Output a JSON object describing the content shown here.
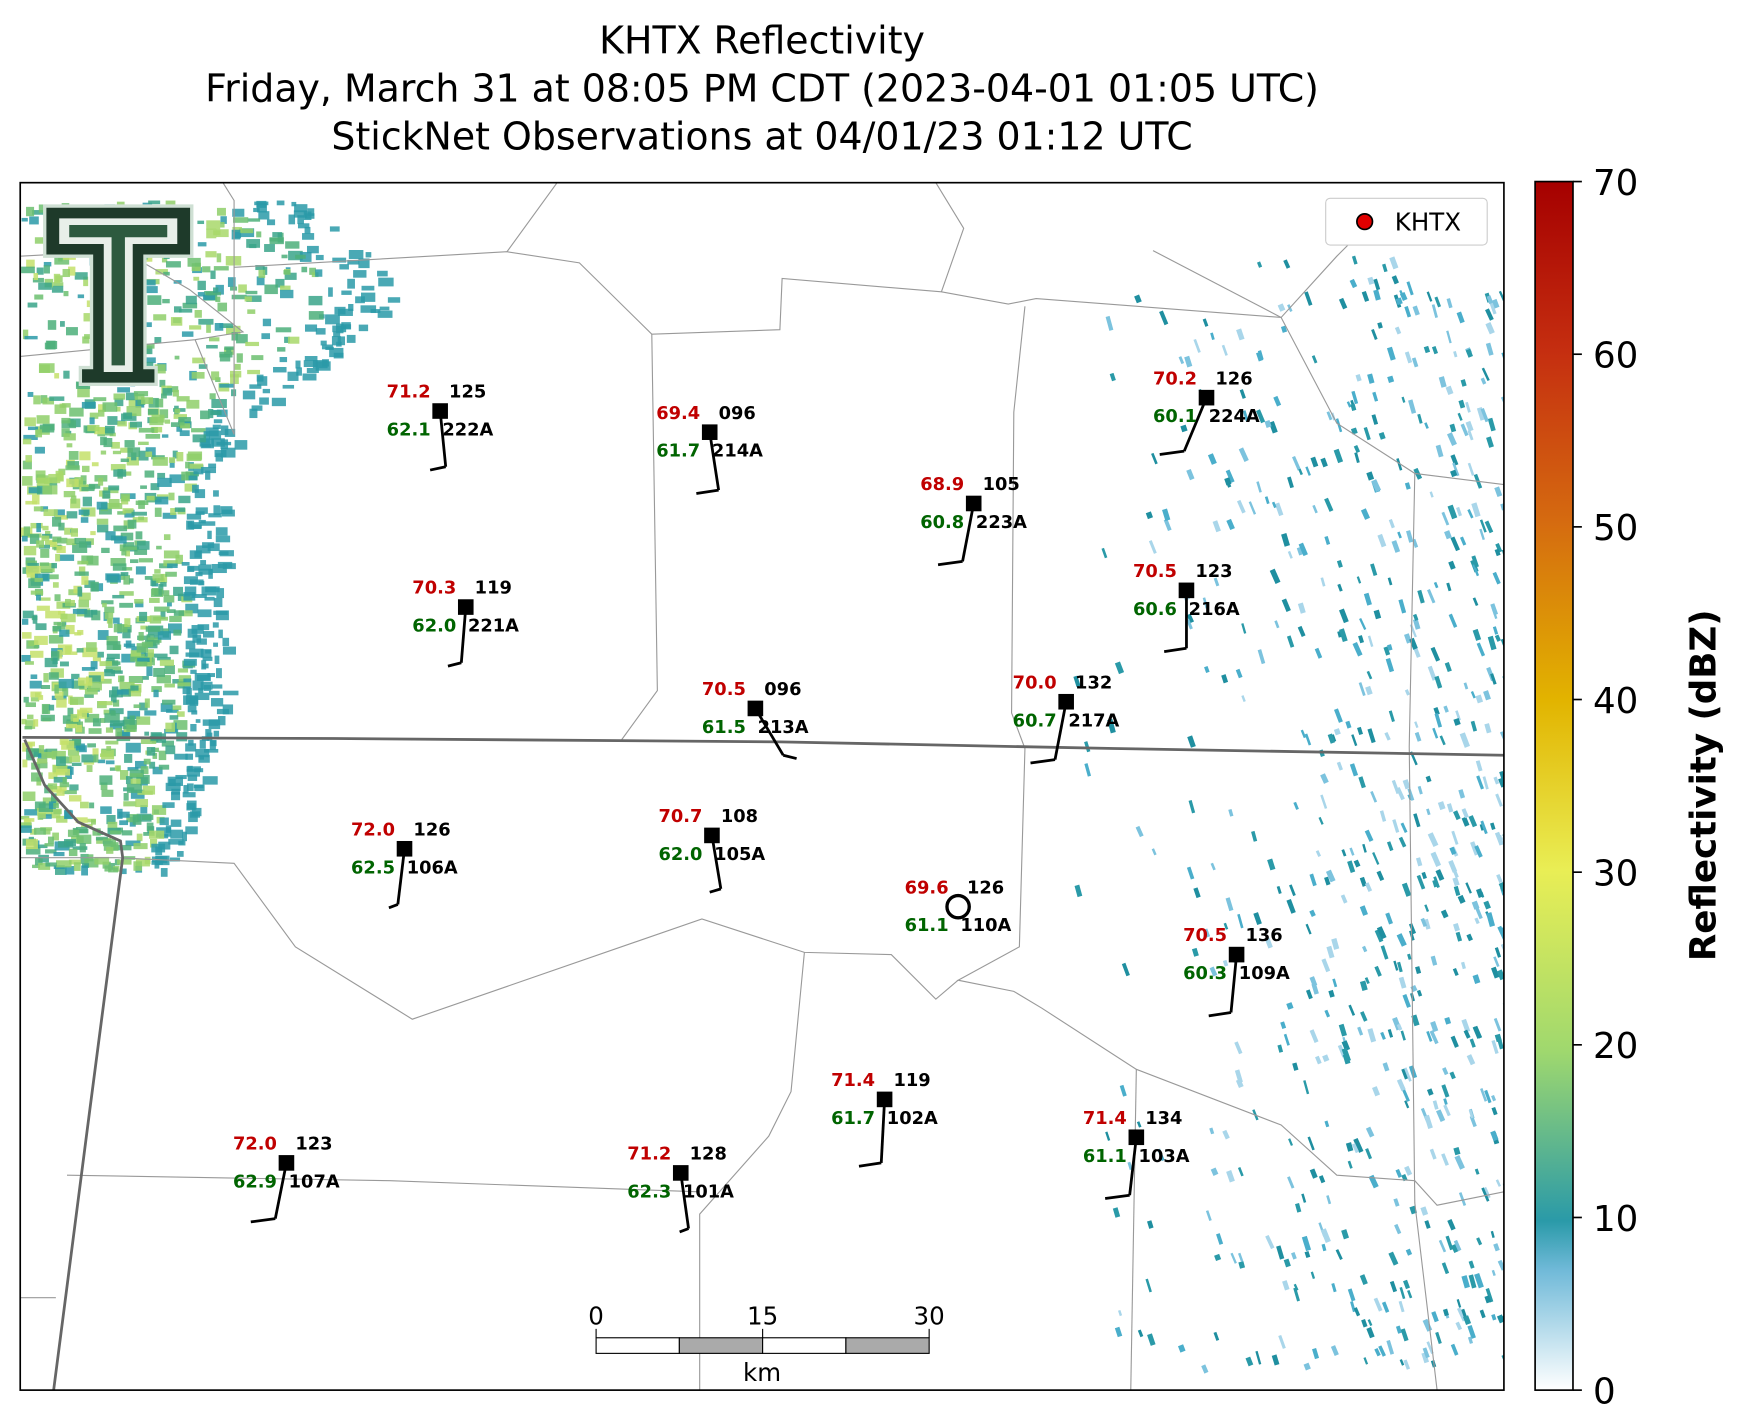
{
  "title": [
    "KHTX Reflectivity",
    "Friday, March 31 at 08:05 PM CDT (2023-04-01 01:05 UTC)",
    "StickNet Observations at 04/01/23 01:12 UTC"
  ],
  "legend": "KHTX",
  "colorbar": {
    "label": "Reflectivity (dBZ)",
    "lim": [
      0,
      70
    ],
    "ticks": [
      0,
      10,
      20,
      30,
      40,
      50,
      60,
      70
    ]
  },
  "scale_bar": {
    "lim": [
      0,
      30
    ],
    "ticks": [
      0,
      15,
      30
    ],
    "unit": "km"
  },
  "stations": [
    {
      "temp": "71.2",
      "dew": "62.1",
      "code": "125",
      "id": "222A"
    },
    {
      "temp": "69.4",
      "dew": "61.7",
      "code": "096",
      "id": "214A"
    },
    {
      "temp": "70.2",
      "dew": "60.1",
      "code": "126",
      "id": "224A"
    },
    {
      "temp": "68.9",
      "dew": "60.8",
      "code": "105",
      "id": "223A"
    },
    {
      "temp": "70.3",
      "dew": "62.0",
      "code": "119",
      "id": "221A"
    },
    {
      "temp": "70.5",
      "dew": "60.6",
      "code": "123",
      "id": "216A"
    },
    {
      "temp": "70.5",
      "dew": "61.5",
      "code": "096",
      "id": "213A"
    },
    {
      "temp": "70.0",
      "dew": "60.7",
      "code": "132",
      "id": "217A"
    },
    {
      "temp": "72.0",
      "dew": "62.5",
      "code": "126",
      "id": "106A"
    },
    {
      "temp": "70.7",
      "dew": "62.0",
      "code": "108",
      "id": "105A"
    },
    {
      "temp": "69.6",
      "dew": "61.1",
      "code": "126",
      "id": "110A"
    },
    {
      "temp": "70.5",
      "dew": "60.3",
      "code": "136",
      "id": "109A"
    },
    {
      "temp": "71.4",
      "dew": "61.7",
      "code": "119",
      "id": "102A"
    },
    {
      "temp": "71.4",
      "dew": "61.1",
      "code": "134",
      "id": "103A"
    },
    {
      "temp": "72.0",
      "dew": "62.9",
      "code": "123",
      "id": "107A"
    },
    {
      "temp": "71.2",
      "dew": "62.3",
      "code": "128",
      "id": "101A"
    }
  ]
}
